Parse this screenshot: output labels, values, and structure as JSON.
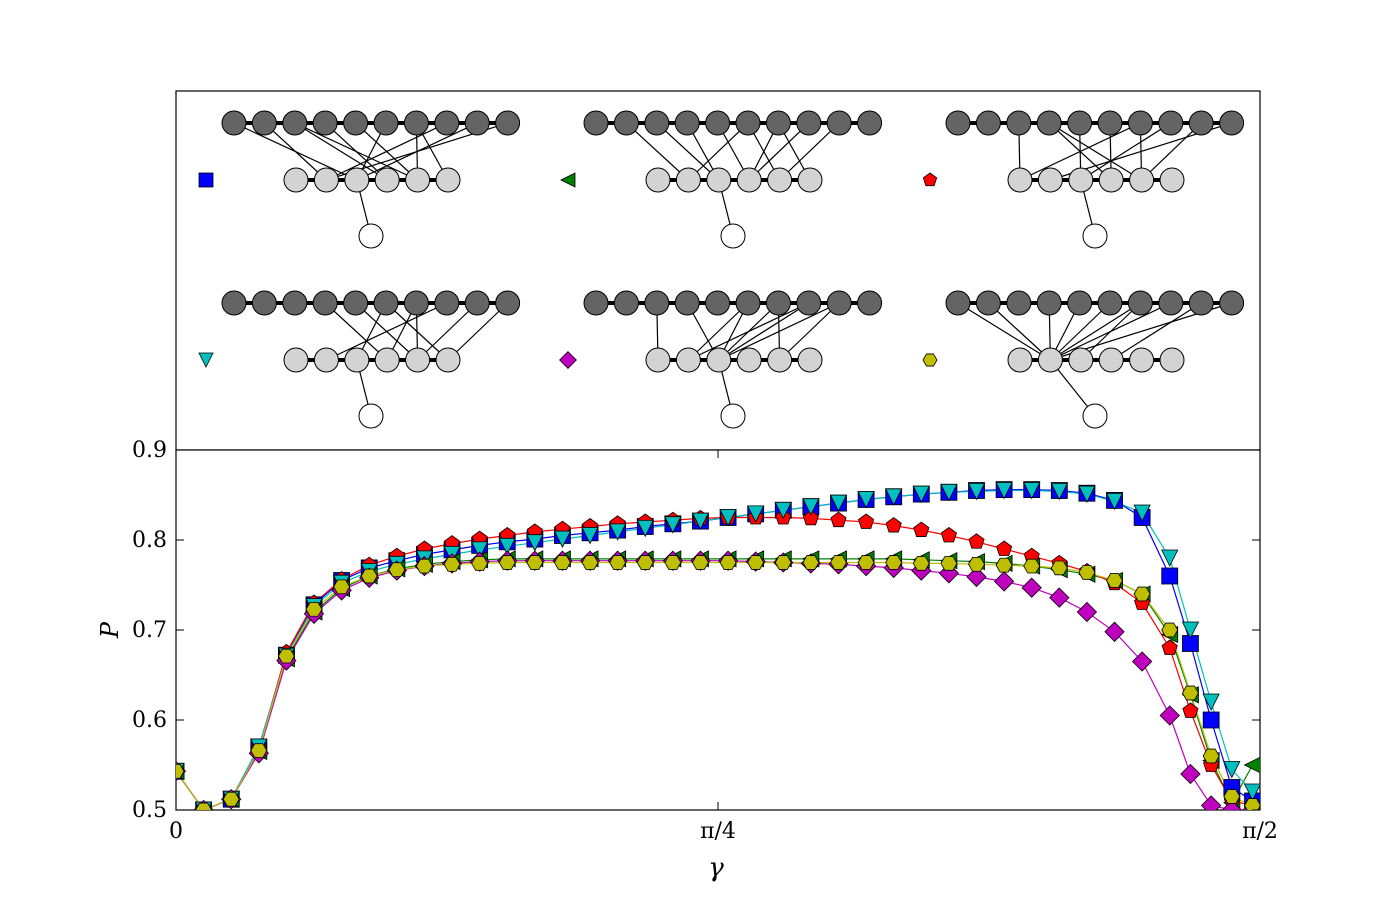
{
  "chart_data": {
    "type": "line",
    "xlabel": "γ",
    "ylabel": "P",
    "xlim": [
      0,
      1.5708
    ],
    "ylim": [
      0.5,
      0.9
    ],
    "xticks": [
      {
        "value": 0,
        "label": "0"
      },
      {
        "value": 0.7854,
        "label": "π/4"
      },
      {
        "value": 1.5708,
        "label": "π/2"
      }
    ],
    "yticks": [
      {
        "value": 0.5,
        "label": "0.5"
      },
      {
        "value": 0.6,
        "label": "0.6"
      },
      {
        "value": 0.7,
        "label": "0.7"
      },
      {
        "value": 0.8,
        "label": "0.8"
      },
      {
        "value": 0.9,
        "label": "0.9"
      }
    ],
    "grid": false,
    "legend": "top inset panel with network diagrams",
    "x": [
      0,
      0.04,
      0.08,
      0.12,
      0.16,
      0.2,
      0.24,
      0.28,
      0.32,
      0.36,
      0.4,
      0.44,
      0.48,
      0.52,
      0.56,
      0.6,
      0.64,
      0.68,
      0.72,
      0.76,
      0.8,
      0.84,
      0.88,
      0.92,
      0.96,
      1.0,
      1.04,
      1.08,
      1.12,
      1.16,
      1.2,
      1.24,
      1.28,
      1.32,
      1.36,
      1.4,
      1.44,
      1.47,
      1.5,
      1.53,
      1.56
    ],
    "series": [
      {
        "color": "#0000ff",
        "marker": "square",
        "values": [
          0.543,
          0.5,
          0.512,
          0.57,
          0.672,
          0.728,
          0.755,
          0.769,
          0.777,
          0.784,
          0.789,
          0.794,
          0.798,
          0.801,
          0.805,
          0.808,
          0.811,
          0.815,
          0.818,
          0.821,
          0.825,
          0.829,
          0.833,
          0.837,
          0.841,
          0.845,
          0.848,
          0.851,
          0.853,
          0.855,
          0.856,
          0.856,
          0.855,
          0.852,
          0.844,
          0.825,
          0.76,
          0.685,
          0.6,
          0.525,
          0.51
        ]
      },
      {
        "color": "#008000",
        "marker": "triangle-left",
        "values": [
          0.543,
          0.5,
          0.512,
          0.565,
          0.668,
          0.72,
          0.746,
          0.76,
          0.768,
          0.773,
          0.776,
          0.778,
          0.779,
          0.779,
          0.779,
          0.779,
          0.779,
          0.779,
          0.779,
          0.779,
          0.779,
          0.779,
          0.779,
          0.779,
          0.779,
          0.779,
          0.779,
          0.778,
          0.777,
          0.776,
          0.774,
          0.771,
          0.767,
          0.762,
          0.755,
          0.74,
          0.695,
          0.628,
          0.555,
          0.508,
          0.55
        ]
      },
      {
        "color": "#ff0000",
        "marker": "pentagon",
        "values": [
          0.543,
          0.5,
          0.512,
          0.568,
          0.675,
          0.73,
          0.756,
          0.772,
          0.782,
          0.79,
          0.796,
          0.801,
          0.805,
          0.809,
          0.812,
          0.815,
          0.818,
          0.82,
          0.822,
          0.824,
          0.825,
          0.825,
          0.825,
          0.824,
          0.822,
          0.82,
          0.816,
          0.811,
          0.805,
          0.798,
          0.79,
          0.782,
          0.774,
          0.765,
          0.752,
          0.73,
          0.68,
          0.61,
          0.55,
          0.51,
          0.505
        ]
      },
      {
        "color": "#00bfbf",
        "marker": "triangle-down",
        "values": [
          0.543,
          0.5,
          0.512,
          0.57,
          0.671,
          0.726,
          0.752,
          0.765,
          0.773,
          0.779,
          0.784,
          0.789,
          0.793,
          0.797,
          0.801,
          0.805,
          0.809,
          0.813,
          0.817,
          0.821,
          0.825,
          0.829,
          0.833,
          0.837,
          0.841,
          0.845,
          0.848,
          0.851,
          0.853,
          0.854,
          0.855,
          0.855,
          0.854,
          0.851,
          0.843,
          0.83,
          0.78,
          0.7,
          0.62,
          0.545,
          0.52
        ]
      },
      {
        "color": "#bf00bf",
        "marker": "diamond",
        "values": [
          0.543,
          0.5,
          0.512,
          0.563,
          0.666,
          0.718,
          0.744,
          0.758,
          0.766,
          0.771,
          0.774,
          0.776,
          0.777,
          0.777,
          0.777,
          0.777,
          0.777,
          0.777,
          0.777,
          0.777,
          0.777,
          0.776,
          0.775,
          0.774,
          0.773,
          0.771,
          0.769,
          0.766,
          0.763,
          0.759,
          0.754,
          0.747,
          0.736,
          0.72,
          0.698,
          0.665,
          0.605,
          0.54,
          0.505,
          0.5,
          0.5
        ]
      },
      {
        "color": "#bfbf00",
        "marker": "hexagon",
        "values": [
          0.543,
          0.5,
          0.512,
          0.566,
          0.671,
          0.723,
          0.748,
          0.76,
          0.767,
          0.771,
          0.773,
          0.774,
          0.775,
          0.775,
          0.775,
          0.775,
          0.775,
          0.775,
          0.775,
          0.775,
          0.775,
          0.775,
          0.775,
          0.775,
          0.775,
          0.775,
          0.775,
          0.774,
          0.774,
          0.773,
          0.772,
          0.771,
          0.769,
          0.764,
          0.755,
          0.74,
          0.7,
          0.63,
          0.56,
          0.515,
          0.505
        ]
      }
    ]
  },
  "inset": {
    "networks": [
      {
        "color": "#0000ff",
        "marker": "square",
        "edges": [
          [
            0,
            2
          ],
          [
            1,
            1
          ],
          [
            2,
            3
          ],
          [
            2,
            4
          ],
          [
            3,
            3
          ],
          [
            4,
            4
          ],
          [
            5,
            2
          ],
          [
            6,
            4
          ],
          [
            6,
            5
          ],
          [
            7,
            1
          ],
          [
            8,
            2
          ],
          [
            9,
            1
          ]
        ],
        "out": 2
      },
      {
        "color": "#008000",
        "marker": "triangle-left",
        "edges": [
          [
            1,
            1
          ],
          [
            2,
            2
          ],
          [
            3,
            2
          ],
          [
            4,
            3
          ],
          [
            5,
            1
          ],
          [
            5,
            4
          ],
          [
            6,
            3
          ],
          [
            7,
            3
          ],
          [
            8,
            4
          ],
          [
            6,
            5
          ]
        ],
        "out": 2
      },
      {
        "color": "#ff0000",
        "marker": "pentagon",
        "edges": [
          [
            2,
            0
          ],
          [
            3,
            3
          ],
          [
            3,
            4
          ],
          [
            4,
            2
          ],
          [
            5,
            3
          ],
          [
            6,
            0
          ],
          [
            6,
            4
          ],
          [
            7,
            2
          ],
          [
            8,
            4
          ],
          [
            9,
            1
          ]
        ],
        "out": 2
      },
      {
        "color": "#00bfbf",
        "marker": "triangle-down",
        "edges": [
          [
            3,
            3
          ],
          [
            4,
            4
          ],
          [
            5,
            2
          ],
          [
            5,
            5
          ],
          [
            6,
            3
          ],
          [
            6,
            4
          ],
          [
            7,
            1
          ],
          [
            8,
            4
          ],
          [
            9,
            5
          ]
        ],
        "out": 2
      },
      {
        "color": "#bf00bf",
        "marker": "diamond",
        "edges": [
          [
            2,
            0
          ],
          [
            3,
            2
          ],
          [
            5,
            1
          ],
          [
            5,
            2
          ],
          [
            6,
            2
          ],
          [
            6,
            4
          ],
          [
            7,
            1
          ],
          [
            7,
            2
          ],
          [
            8,
            2
          ],
          [
            8,
            4
          ]
        ],
        "out": 2
      },
      {
        "color": "#bfbf00",
        "marker": "hexagon",
        "edges": [
          [
            0,
            1
          ],
          [
            1,
            1
          ],
          [
            3,
            1
          ],
          [
            4,
            1
          ],
          [
            5,
            1
          ],
          [
            6,
            1
          ],
          [
            7,
            1
          ],
          [
            9,
            1
          ],
          [
            6,
            2
          ],
          [
            8,
            3
          ]
        ],
        "out": 1
      }
    ]
  }
}
